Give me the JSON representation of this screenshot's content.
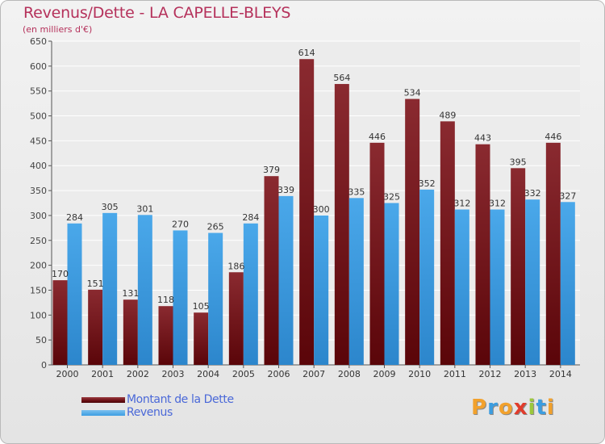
{
  "header": {
    "title": "Revenus/Dette - LA CAPELLE-BLEYS",
    "subtitle": "(en milliers d'€)"
  },
  "chart_data": {
    "type": "bar",
    "title": "Revenus/Dette - LA CAPELLE-BLEYS",
    "subtitle": "(en milliers d'€)",
    "categories": [
      "2000",
      "2001",
      "2002",
      "2003",
      "2004",
      "2005",
      "2006",
      "2007",
      "2008",
      "2009",
      "2010",
      "2011",
      "2012",
      "2013",
      "2014"
    ],
    "series": [
      {
        "name": "Montant de la Dette",
        "color": "#7a1a1f",
        "values": [
          170,
          151,
          131,
          118,
          105,
          186,
          379,
          614,
          564,
          446,
          534,
          489,
          443,
          395,
          446
        ]
      },
      {
        "name": "Revenus",
        "color": "#3d9ee2",
        "values": [
          284,
          305,
          301,
          270,
          265,
          284,
          339,
          300,
          335,
          325,
          352,
          312,
          312,
          332,
          327
        ]
      }
    ],
    "yticks": [
      0,
      50,
      100,
      150,
      200,
      250,
      300,
      350,
      400,
      450,
      500,
      550,
      600,
      650
    ],
    "ylim": [
      0,
      650
    ],
    "grid": true,
    "legend_position": "bottom-left"
  },
  "legend": {
    "items": [
      {
        "label": "Montant de la Dette",
        "color": "#6b0f14"
      },
      {
        "label": "Revenus",
        "color": "#3d9ee2"
      }
    ]
  },
  "brand": {
    "letters": [
      "P",
      "r",
      "o",
      "x",
      "i",
      "t",
      "i"
    ],
    "colors": [
      "#f2a12c",
      "#3c9de0",
      "#f2a12c",
      "#e03c2c",
      "#9bc83c",
      "#3c9de0",
      "#f2a12c"
    ]
  }
}
